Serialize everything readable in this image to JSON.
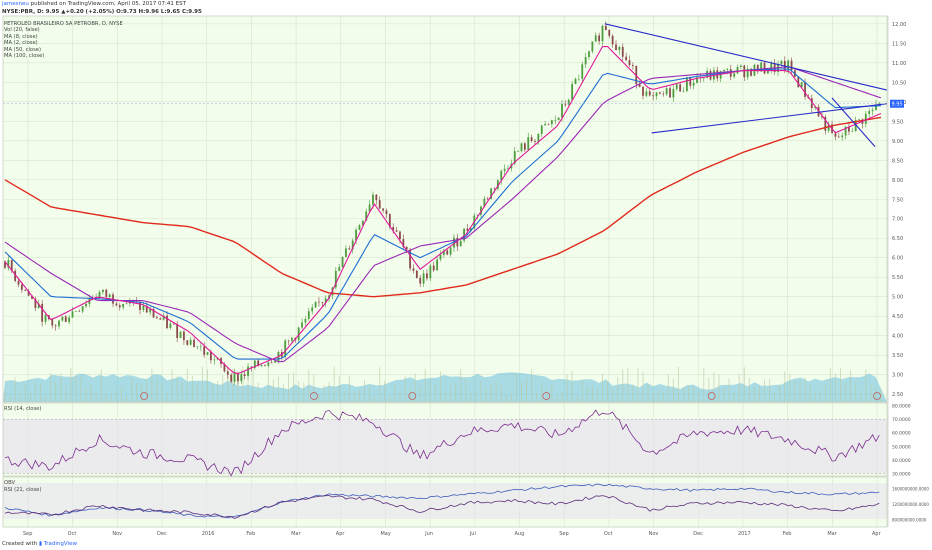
{
  "header": {
    "user": "jamesneu",
    "published_text": " published on TradingView.com, April 05, 2017 07:41 EST",
    "quote_line": "NYSE:PBR, D: 9.95 ▲+0.20 (+2.05%) O:9.73 H:9.96 L:9.65 C:9.95"
  },
  "legend": {
    "symbol_title": "PETROLEO BRASILEIRO SA PETROBR, D, NYSE",
    "items": [
      "Vol (20, false)",
      "MA (8, close)",
      "MA (2, close)",
      "MA (50, close)",
      "MA (100, close)"
    ]
  },
  "price_axis": {
    "ticks": [
      "12.00",
      "11.50",
      "11.00",
      "10.50",
      "10.00",
      "9.50",
      "9.00",
      "8.50",
      "8.00",
      "7.50",
      "7.00",
      "6.50",
      "6.00",
      "5.50",
      "5.00",
      "4.50",
      "4.00",
      "3.50",
      "3.00",
      "2.50"
    ]
  },
  "last_price_label": "9.95",
  "rsi_pane": {
    "title": "RSI (14, close)",
    "ticks": [
      "80.0000",
      "70.0000",
      "60.0000",
      "50.0000",
      "40.0000",
      "30.0000"
    ]
  },
  "obv_pane": {
    "title_1": "OBV",
    "title_2": "RSI (21, close)",
    "ticks": [
      "1600000000.0000",
      "1200000000.0000",
      "800000000.0000"
    ]
  },
  "time_axis": {
    "labels": [
      "Sep",
      "Oct",
      "Nov",
      "Dec",
      "2016",
      "Feb",
      "Mar",
      "Apr",
      "May",
      "Jun",
      "Jul",
      "Aug",
      "Sep",
      "Oct",
      "Nov",
      "Dec",
      "2017",
      "Feb",
      "Mar",
      "Apr"
    ]
  },
  "footer": {
    "created_with": "Created with",
    "brand": "TradingView"
  },
  "colors": {
    "background": "#f3fdec",
    "candle_up": "#4d9c3e",
    "candle_down": "#8b4a4a",
    "ma_fast": "#e0189a",
    "ma_mid": "#1f6ed4",
    "ma_50": "#9b27b6",
    "ma_200": "#e12a1c",
    "trendline": "#2929c9",
    "volume": "#6cc0de",
    "rsi_line": "#7b2e8e",
    "obv_line": "#5b2d7a"
  },
  "chart_data": {
    "type": "line",
    "title": "PETROLEO BRASILEIRO SA PETROBR, D, NYSE",
    "x": [
      "Sep",
      "Oct",
      "Nov",
      "Dec",
      "2016",
      "Feb",
      "Mar",
      "Apr",
      "May",
      "Jun",
      "Jul",
      "Aug",
      "Sep",
      "Oct",
      "Nov",
      "Dec",
      "2017",
      "Feb",
      "Mar",
      "Apr"
    ],
    "ylim": [
      2.3,
      12.2
    ],
    "series": [
      {
        "name": "close",
        "values": [
          5.9,
          4.2,
          5.1,
          4.7,
          3.9,
          2.9,
          3.6,
          5.1,
          7.7,
          5.4,
          6.7,
          8.6,
          9.6,
          12.0,
          10.0,
          10.6,
          10.8,
          10.9,
          9.0,
          9.95
        ]
      },
      {
        "name": "MA (8, close)",
        "values": [
          5.9,
          4.4,
          5.0,
          4.8,
          4.1,
          3.0,
          3.5,
          4.9,
          7.4,
          5.7,
          6.6,
          8.4,
          9.4,
          11.5,
          10.3,
          10.6,
          10.8,
          10.8,
          9.2,
          9.7
        ]
      },
      {
        "name": "MA (50, close)",
        "values": [
          6.4,
          5.6,
          4.9,
          4.9,
          4.6,
          3.8,
          3.3,
          4.2,
          5.8,
          6.3,
          6.5,
          7.5,
          8.6,
          10.0,
          10.6,
          10.7,
          10.8,
          10.9,
          10.5,
          10.1
        ]
      },
      {
        "name": "MA (100, close)",
        "values": [
          8.0,
          7.3,
          7.1,
          6.9,
          6.8,
          6.4,
          5.6,
          5.1,
          5.0,
          5.1,
          5.3,
          5.7,
          6.1,
          6.7,
          7.6,
          8.2,
          8.7,
          9.1,
          9.4,
          9.6
        ]
      }
    ],
    "rsi_ylim": [
      28,
      82
    ],
    "rsi_values": [
      40,
      35,
      55,
      45,
      40,
      30,
      62,
      75,
      68,
      42,
      60,
      66,
      58,
      78,
      45,
      60,
      62,
      55,
      42,
      58
    ],
    "obv_values": [
      1100000000,
      900000000,
      1100000000,
      1050000000,
      900000000,
      850000000,
      1250000000,
      1450000000,
      1400000000,
      1350000000,
      1450000000,
      1550000000,
      1650000000,
      1700000000,
      1600000000,
      1550000000,
      1600000000,
      1500000000,
      1450000000,
      1500000000
    ]
  }
}
